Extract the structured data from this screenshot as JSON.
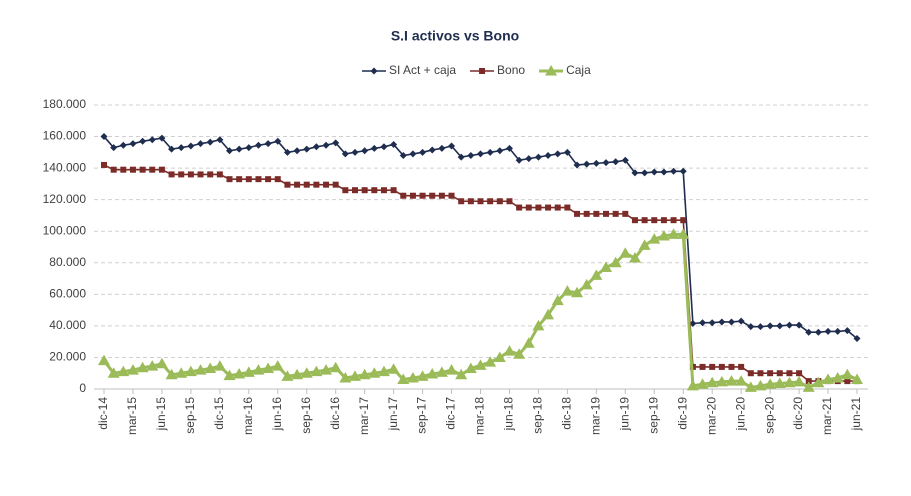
{
  "chart_data": {
    "type": "line",
    "title": "S.I activos vs Bono",
    "categories": [
      "dic-14",
      null,
      null,
      "mar-15",
      null,
      null,
      "jun-15",
      null,
      null,
      "sep-15",
      null,
      null,
      "dic-15",
      null,
      null,
      "mar-16",
      null,
      null,
      "jun-16",
      null,
      null,
      "sep-16",
      null,
      null,
      "dic-16",
      null,
      null,
      "mar-17",
      null,
      null,
      "jun-17",
      null,
      null,
      "sep-17",
      null,
      null,
      "dic-17",
      null,
      null,
      "mar-18",
      null,
      null,
      "jun-18",
      null,
      null,
      "sep-18",
      null,
      null,
      "dic-18",
      null,
      null,
      "mar-19",
      null,
      null,
      "jun-19",
      null,
      null,
      "sep-19",
      null,
      null,
      "dic-19",
      null,
      null,
      "mar-20",
      null,
      null,
      "jun-20",
      null,
      null,
      "sep-20",
      null,
      null,
      "dic-20",
      null,
      null,
      "mar-21",
      null,
      null,
      "jun-21"
    ],
    "series": [
      {
        "name": "SI Act + caja",
        "color": "#1f2d4f",
        "marker": "diamond",
        "values": [
          160000,
          153000,
          154500,
          155500,
          157000,
          158000,
          159000,
          152000,
          153000,
          154000,
          155500,
          156500,
          158000,
          151000,
          152000,
          153000,
          154500,
          155500,
          157000,
          150000,
          151000,
          152000,
          153500,
          154500,
          156000,
          149000,
          150000,
          151000,
          152500,
          153500,
          155000,
          148000,
          149000,
          150000,
          151500,
          152500,
          154000,
          147000,
          148000,
          149000,
          150000,
          151000,
          152500,
          145000,
          146000,
          147000,
          148000,
          149000,
          150000,
          142000,
          142500,
          143000,
          143500,
          144000,
          145000,
          137000,
          137000,
          137500,
          137500,
          138000,
          138000,
          41500,
          42000,
          42000,
          42500,
          42500,
          43000,
          39500,
          39500,
          40000,
          40000,
          40500,
          40500,
          36000,
          36000,
          36500,
          36500,
          37000,
          32000
        ]
      },
      {
        "name": "Bono",
        "color": "#7b2c28",
        "marker": "square",
        "values": [
          142000,
          139000,
          139000,
          139000,
          139000,
          139000,
          139000,
          136000,
          136000,
          136000,
          136000,
          136000,
          136000,
          133000,
          133000,
          133000,
          133000,
          133000,
          133000,
          129500,
          129500,
          129500,
          129500,
          129500,
          129500,
          126000,
          126000,
          126000,
          126000,
          126000,
          126000,
          122500,
          122500,
          122500,
          122500,
          122500,
          122500,
          119000,
          119000,
          119000,
          119000,
          119000,
          119000,
          115000,
          115000,
          115000,
          115000,
          115000,
          115000,
          111000,
          111000,
          111000,
          111000,
          111000,
          111000,
          107000,
          107000,
          107000,
          107000,
          107000,
          107000,
          14000,
          14000,
          14000,
          14000,
          14000,
          14000,
          10000,
          10000,
          10000,
          10000,
          10000,
          10000,
          5000,
          5000,
          5000,
          5000,
          5000,
          5000
        ]
      },
      {
        "name": "Caja",
        "color": "#9bbb59",
        "marker": "triangle",
        "values": [
          18000,
          10000,
          11000,
          12000,
          13500,
          14500,
          16000,
          9000,
          10000,
          11000,
          12000,
          13000,
          14500,
          8500,
          9500,
          10500,
          12000,
          13000,
          14500,
          8000,
          9000,
          10000,
          11000,
          12000,
          13500,
          7000,
          8000,
          9000,
          10000,
          11000,
          12500,
          6000,
          7000,
          8000,
          9500,
          10500,
          12000,
          9000,
          13000,
          15000,
          17000,
          20000,
          24000,
          22000,
          29000,
          40000,
          47000,
          56000,
          62000,
          61000,
          66000,
          72000,
          77000,
          80000,
          86000,
          83000,
          91000,
          95000,
          97000,
          98000,
          98000,
          2000,
          3000,
          4000,
          4500,
          5000,
          5000,
          1000,
          2000,
          3000,
          3500,
          4000,
          4500,
          1000,
          4000,
          6000,
          7000,
          9000,
          6000
        ]
      }
    ],
    "ylim": [
      0,
      180000
    ],
    "yticks": [
      0,
      {
        "value": 20000,
        "label": "20.000"
      },
      {
        "value": 40000,
        "label": "40.000"
      },
      {
        "value": 60000,
        "label": "60.000"
      },
      {
        "value": 80000,
        "label": "80.000"
      },
      {
        "value": 100000,
        "label": "100.000"
      },
      {
        "value": 120000,
        "label": "120.000"
      },
      {
        "value": 140000,
        "label": "140.000"
      },
      {
        "value": 160000,
        "label": "160.000"
      },
      {
        "value": 180000,
        "label": "180.000"
      }
    ],
    "grid": true,
    "legend": "top"
  }
}
